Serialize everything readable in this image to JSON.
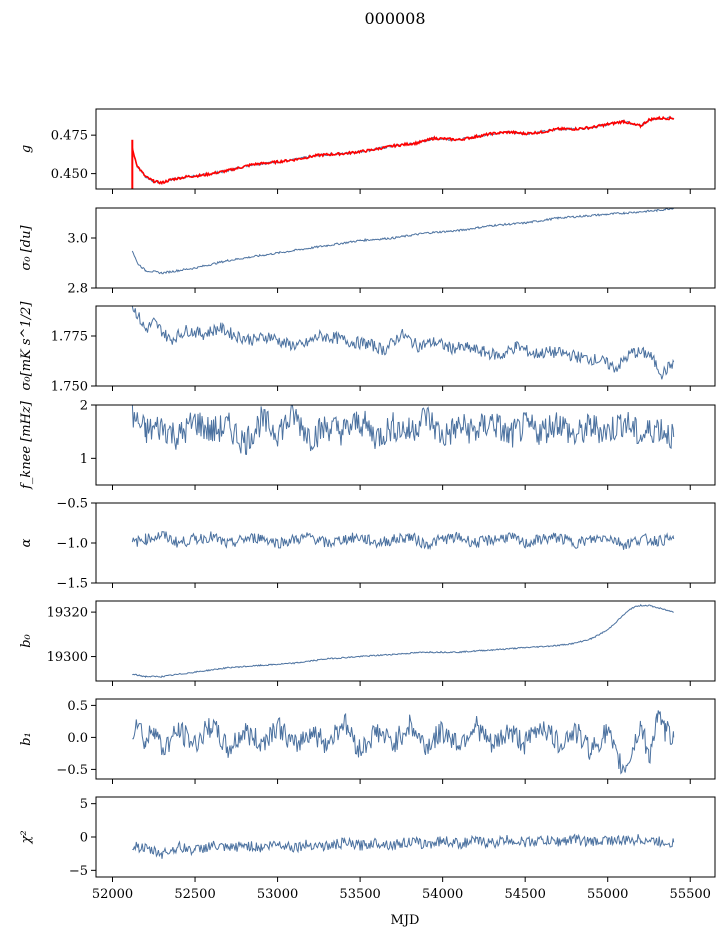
{
  "figure": {
    "title": "000008"
  },
  "chart_data": {
    "type": "line",
    "title": "000008",
    "xlabel": "MJD",
    "xlim": [
      51900,
      55650
    ],
    "xticks": [
      52000,
      52500,
      53000,
      53500,
      54000,
      54500,
      55000,
      55500
    ],
    "x_range_data": [
      52120,
      55400
    ],
    "line_color": "#4c72a0",
    "overlay_color": "#ff0000",
    "panels": [
      {
        "key": "g",
        "ylabel": "g",
        "ylim": [
          0.44,
          0.492
        ],
        "yticks": [
          0.45,
          0.475
        ],
        "ytick_labels": [
          "0.450",
          "0.475"
        ],
        "series": [
          {
            "color": "#4c72a0",
            "x": [
              52120,
              52150,
              52200,
              52250,
              52300,
              52350,
              52450,
              52550,
              52700,
              52850,
              52950,
              53100,
              53250,
              53400,
              53550,
              53700,
              53850,
              53950,
              54100,
              54200,
              54300,
              54400,
              54500,
              54600,
              54700,
              54800,
              54900,
              54950,
              55000,
              55100,
              55150,
              55200,
              55250,
              55300,
              55400
            ],
            "y": [
              0.466,
              0.455,
              0.448,
              0.445,
              0.444,
              0.446,
              0.448,
              0.449,
              0.452,
              0.456,
              0.457,
              0.459,
              0.462,
              0.463,
              0.465,
              0.468,
              0.47,
              0.473,
              0.472,
              0.474,
              0.476,
              0.477,
              0.476,
              0.477,
              0.479,
              0.479,
              0.48,
              0.481,
              0.482,
              0.484,
              0.482,
              0.481,
              0.485,
              0.486,
              0.486
            ]
          },
          {
            "color": "#ff0000",
            "name": "",
            "x": [
              52120,
              52150,
              52200,
              52250,
              52300,
              52350,
              52450,
              52550,
              52700,
              52850,
              52950,
              53100,
              53250,
              53400,
              53550,
              53700,
              53850,
              53950,
              54100,
              54200,
              54300,
              54400,
              54500,
              54600,
              54700,
              54800,
              54900,
              54950,
              55000,
              55100,
              55150,
              55200,
              55250,
              55300,
              55400
            ],
            "y": [
              0.466,
              0.455,
              0.448,
              0.445,
              0.444,
              0.446,
              0.448,
              0.449,
              0.452,
              0.456,
              0.457,
              0.459,
              0.462,
              0.463,
              0.465,
              0.468,
              0.47,
              0.473,
              0.472,
              0.474,
              0.476,
              0.477,
              0.476,
              0.477,
              0.479,
              0.479,
              0.48,
              0.481,
              0.482,
              0.484,
              0.482,
              0.481,
              0.485,
              0.486,
              0.486
            ]
          }
        ]
      },
      {
        "key": "sigma0",
        "ylabel": "σ₀ [du]",
        "ylim": [
          2.8,
          3.12
        ],
        "yticks": [
          2.8,
          3.0
        ],
        "ytick_labels": [
          "2.8",
          "3.0"
        ],
        "series": [
          {
            "color": "#4c72a0",
            "x": [
              52120,
              52150,
              52200,
              52300,
              52400,
              52500,
              52700,
              52900,
              53100,
              53300,
              53500,
              53700,
              53900,
              54100,
              54300,
              54500,
              54700,
              54900,
              55100,
              55300,
              55400
            ],
            "y": [
              2.95,
              2.9,
              2.87,
              2.86,
              2.87,
              2.88,
              2.91,
              2.93,
              2.95,
              2.97,
              2.99,
              3.0,
              3.02,
              3.03,
              3.05,
              3.06,
              3.08,
              3.09,
              3.1,
              3.11,
              3.12
            ]
          }
        ]
      },
      {
        "key": "sigma0_mks",
        "ylabel": "σ₀[mK s^1/2]",
        "ylim": [
          1.75,
          1.79
        ],
        "yticks": [
          1.75,
          1.775
        ],
        "ytick_labels": [
          "1.750",
          "1.775"
        ],
        "series": [
          {
            "color": "#4c72a0",
            "x": [
              52120,
              52150,
              52200,
              52250,
              52350,
              52450,
              52550,
              52650,
              52750,
              52850,
              52950,
              53050,
              53150,
              53250,
              53350,
              53450,
              53550,
              53650,
              53750,
              53850,
              53950,
              54050,
              54150,
              54250,
              54350,
              54450,
              54550,
              54650,
              54750,
              54850,
              54950,
              55050,
              55150,
              55250,
              55330,
              55400
            ],
            "y": [
              1.79,
              1.786,
              1.778,
              1.782,
              1.773,
              1.778,
              1.776,
              1.779,
              1.775,
              1.773,
              1.775,
              1.771,
              1.77,
              1.775,
              1.774,
              1.772,
              1.771,
              1.768,
              1.776,
              1.77,
              1.772,
              1.769,
              1.769,
              1.767,
              1.765,
              1.77,
              1.766,
              1.767,
              1.766,
              1.764,
              1.763,
              1.759,
              1.767,
              1.766,
              1.756,
              1.762
            ]
          }
        ]
      },
      {
        "key": "fknee",
        "ylabel": "f_knee [mHz]",
        "ylim": [
          0.5,
          2.0
        ],
        "yticks": [
          1,
          2
        ],
        "ytick_labels": [
          "1",
          "2"
        ],
        "series": [
          {
            "color": "#4c72a0",
            "x": [
              52120,
              52200,
              52300,
              52400,
              52500,
              52600,
              52700,
              52800,
              52900,
              53000,
              53100,
              53200,
              53300,
              53400,
              53500,
              53600,
              53700,
              53800,
              53900,
              54000,
              54100,
              54200,
              54300,
              54400,
              54500,
              54600,
              54700,
              54800,
              54900,
              55000,
              55100,
              55200,
              55300,
              55400
            ],
            "y": [
              1.8,
              1.5,
              1.6,
              1.4,
              1.7,
              1.5,
              1.6,
              1.3,
              1.7,
              1.5,
              1.8,
              1.4,
              1.6,
              1.5,
              1.7,
              1.4,
              1.6,
              1.5,
              1.8,
              1.4,
              1.6,
              1.5,
              1.7,
              1.4,
              1.6,
              1.5,
              1.7,
              1.4,
              1.6,
              1.5,
              1.7,
              1.4,
              1.6,
              1.4
            ]
          }
        ]
      },
      {
        "key": "alpha",
        "ylabel": "α",
        "ylim": [
          -1.5,
          -0.5
        ],
        "yticks": [
          -1.5,
          -1.0,
          -0.5
        ],
        "ytick_labels": [
          "−1.5",
          "−1.0",
          "−0.5"
        ],
        "series": [
          {
            "color": "#4c72a0",
            "x": [
              52120,
              52200,
              52300,
              52400,
              52500,
              52600,
              52700,
              52800,
              52900,
              53000,
              53100,
              53200,
              53300,
              53400,
              53500,
              53600,
              53700,
              53800,
              53900,
              54000,
              54100,
              54200,
              54300,
              54400,
              54500,
              54600,
              54700,
              54800,
              54900,
              55000,
              55100,
              55200,
              55300,
              55400
            ],
            "y": [
              -1.0,
              -0.95,
              -0.9,
              -1.0,
              -0.95,
              -0.92,
              -1.02,
              -0.95,
              -0.93,
              -1.0,
              -0.96,
              -0.92,
              -1.01,
              -0.95,
              -0.93,
              -1.0,
              -0.96,
              -0.92,
              -1.02,
              -0.95,
              -0.93,
              -1.0,
              -0.96,
              -0.92,
              -1.01,
              -0.95,
              -0.93,
              -1.0,
              -0.96,
              -0.92,
              -1.02,
              -0.95,
              -0.97,
              -0.95
            ]
          }
        ]
      },
      {
        "key": "b0",
        "ylabel": "b₀",
        "ylim": [
          19289,
          19325
        ],
        "yticks": [
          19300,
          19320
        ],
        "ytick_labels": [
          "19300",
          "19320"
        ],
        "series": [
          {
            "color": "#4c72a0",
            "x": [
              52120,
              52200,
              52300,
              52500,
              52700,
              52900,
              53100,
              53300,
              53500,
              53700,
              53900,
              54100,
              54300,
              54500,
              54700,
              54800,
              54900,
              55000,
              55100,
              55150,
              55200,
              55250,
              55300,
              55400
            ],
            "y": [
              19292,
              19291,
              19291,
              19293,
              19295,
              19296,
              19297,
              19299,
              19300,
              19301,
              19302,
              19302,
              19303,
              19304,
              19305,
              19306,
              19308,
              19312,
              19319,
              19322,
              19323,
              19323,
              19322,
              19320
            ]
          }
        ]
      },
      {
        "key": "b1",
        "ylabel": "b₁",
        "ylim": [
          -0.65,
          0.6
        ],
        "yticks": [
          -0.5,
          0.0,
          0.5
        ],
        "ytick_labels": [
          "−0.5",
          "0.0",
          "0.5"
        ],
        "series": [
          {
            "color": "#4c72a0",
            "x": [
              52120,
              52150,
              52200,
              52250,
              52300,
              52400,
              52500,
              52600,
              52700,
              52800,
              52900,
              53000,
              53100,
              53200,
              53300,
              53400,
              53500,
              53600,
              53700,
              53800,
              53900,
              54000,
              54100,
              54200,
              54300,
              54400,
              54500,
              54600,
              54700,
              54800,
              54900,
              55000,
              55050,
              55100,
              55150,
              55200,
              55250,
              55300,
              55350,
              55400
            ],
            "y": [
              0.1,
              0.3,
              -0.1,
              0.2,
              -0.2,
              0.1,
              -0.1,
              0.2,
              -0.2,
              0.1,
              -0.1,
              0.2,
              -0.15,
              0.1,
              -0.1,
              0.25,
              -0.2,
              0.1,
              -0.1,
              0.2,
              -0.15,
              0.1,
              -0.1,
              0.2,
              -0.15,
              0.1,
              -0.1,
              0.2,
              -0.1,
              0.1,
              -0.2,
              0.1,
              -0.3,
              -0.5,
              -0.2,
              0.2,
              -0.3,
              0.3,
              0.1,
              0.0
            ]
          }
        ]
      },
      {
        "key": "chi2",
        "ylabel": "χ²",
        "ylim": [
          -6,
          6
        ],
        "yticks": [
          -5,
          0,
          5
        ],
        "ytick_labels": [
          "−5",
          "0",
          "5"
        ],
        "series": [
          {
            "color": "#4c72a0",
            "x": [
              52120,
              52200,
              52300,
              52400,
              52500,
              52600,
              52700,
              52800,
              52900,
              53000,
              53100,
              53200,
              53300,
              53400,
              53500,
              53600,
              53700,
              53800,
              53900,
              54000,
              54100,
              54200,
              54300,
              54400,
              54500,
              54600,
              54700,
              54800,
              54900,
              55000,
              55100,
              55200,
              55300,
              55400
            ],
            "y": [
              -1.2,
              -1.8,
              -2.5,
              -1.5,
              -2.0,
              -1.3,
              -1.8,
              -1.2,
              -1.6,
              -1.0,
              -1.5,
              -1.1,
              -1.4,
              -0.9,
              -1.3,
              -0.8,
              -1.2,
              -0.7,
              -1.1,
              -0.5,
              -1.0,
              -0.6,
              -0.9,
              -0.4,
              -0.8,
              -0.5,
              -0.7,
              -0.3,
              -0.8,
              -0.4,
              -0.6,
              -0.3,
              -0.7,
              -0.8
            ]
          }
        ]
      }
    ]
  }
}
